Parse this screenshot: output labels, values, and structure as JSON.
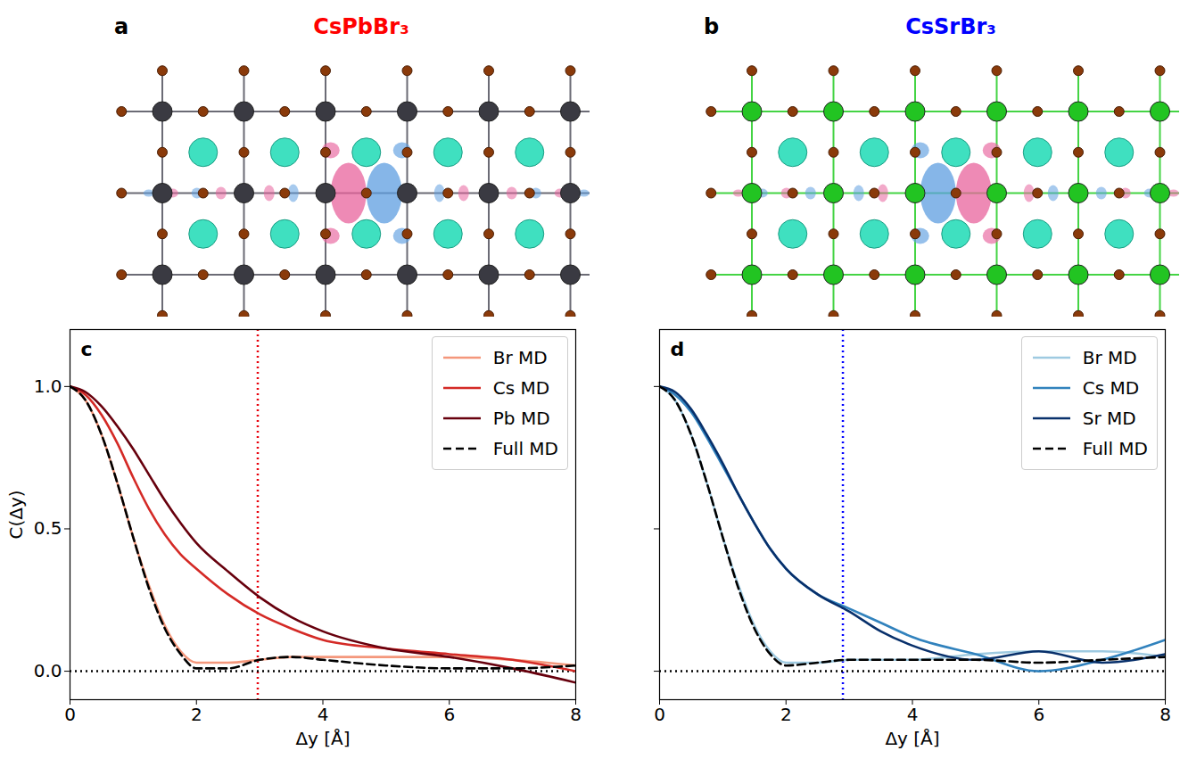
{
  "structures": [
    {
      "panel": "a",
      "title": "CsPbBr₃",
      "title_color": "#ff0000"
    },
    {
      "panel": "b",
      "title": "CsSrBr₃",
      "title_color": "#0000ff"
    }
  ],
  "chart_data": [
    {
      "panel": "c",
      "type": "line",
      "x_label": "Δy [Å]",
      "y_label": "C(Δy)",
      "x": [
        0,
        0.25,
        0.5,
        0.75,
        1,
        1.25,
        1.5,
        1.75,
        2,
        2.5,
        3,
        3.5,
        4,
        5,
        6,
        7,
        8
      ],
      "series": [
        {
          "name": "Br MD",
          "color": "#f4977b",
          "line_style": "solid",
          "values": [
            1.0,
            0.95,
            0.83,
            0.66,
            0.47,
            0.3,
            0.16,
            0.07,
            0.03,
            0.03,
            0.04,
            0.05,
            0.05,
            0.05,
            0.05,
            0.04,
            0.02
          ]
        },
        {
          "name": "Cs MD",
          "color": "#d42a26",
          "line_style": "solid",
          "values": [
            1.0,
            0.97,
            0.9,
            0.8,
            0.68,
            0.57,
            0.48,
            0.41,
            0.36,
            0.27,
            0.2,
            0.15,
            0.11,
            0.08,
            0.06,
            0.04,
            0.0
          ]
        },
        {
          "name": "Pb MD",
          "color": "#67000d",
          "line_style": "solid",
          "values": [
            1.0,
            0.98,
            0.93,
            0.86,
            0.78,
            0.69,
            0.6,
            0.52,
            0.45,
            0.35,
            0.26,
            0.19,
            0.14,
            0.08,
            0.05,
            0.01,
            -0.04
          ]
        },
        {
          "name": "Full MD",
          "color": "#000000",
          "line_style": "dashed",
          "values": [
            1.0,
            0.95,
            0.83,
            0.66,
            0.47,
            0.29,
            0.15,
            0.06,
            0.01,
            0.01,
            0.04,
            0.05,
            0.04,
            0.02,
            0.01,
            0.01,
            0.02
          ]
        }
      ],
      "xlim": [
        0,
        8
      ],
      "xticks": [
        0,
        2,
        4,
        6,
        8
      ],
      "ylim": [
        -0.1,
        1.2
      ],
      "yticks": [
        {
          "value": 0,
          "label": "0.0"
        },
        {
          "value": 0.5,
          "label": "0.5"
        },
        {
          "value": 1,
          "label": "1.0"
        }
      ],
      "legend": "top-right",
      "reference_lines": [
        {
          "x": 2.97,
          "color": "#e8000b",
          "line_style": "dotted"
        },
        {
          "y": 0,
          "color": "#000000",
          "line_style": "dotted"
        }
      ]
    },
    {
      "panel": "d",
      "type": "line",
      "x_label": "Δy [Å]",
      "x": [
        0,
        0.25,
        0.5,
        0.75,
        1,
        1.25,
        1.5,
        1.75,
        2,
        2.5,
        3,
        3.5,
        4,
        5,
        6,
        7,
        8
      ],
      "series": [
        {
          "name": "Br MD",
          "color": "#9ecae1",
          "line_style": "solid",
          "values": [
            1.0,
            0.95,
            0.83,
            0.66,
            0.47,
            0.3,
            0.16,
            0.07,
            0.03,
            0.03,
            0.04,
            0.04,
            0.04,
            0.06,
            0.07,
            0.07,
            0.05
          ]
        },
        {
          "name": "Cs MD",
          "color": "#3182bd",
          "line_style": "solid",
          "values": [
            1.0,
            0.97,
            0.91,
            0.82,
            0.72,
            0.62,
            0.52,
            0.43,
            0.36,
            0.27,
            0.22,
            0.17,
            0.12,
            0.06,
            0.0,
            0.04,
            0.11
          ]
        },
        {
          "name": "Sr MD",
          "color": "#08306b",
          "line_style": "solid",
          "values": [
            1.0,
            0.98,
            0.92,
            0.83,
            0.73,
            0.62,
            0.52,
            0.43,
            0.36,
            0.27,
            0.21,
            0.14,
            0.09,
            0.04,
            0.07,
            0.03,
            0.06
          ]
        },
        {
          "name": "Full MD",
          "color": "#000000",
          "line_style": "dashed",
          "values": [
            1.0,
            0.95,
            0.83,
            0.66,
            0.47,
            0.29,
            0.15,
            0.06,
            0.02,
            0.03,
            0.04,
            0.04,
            0.04,
            0.04,
            0.03,
            0.04,
            0.05
          ]
        }
      ],
      "xlim": [
        0,
        8
      ],
      "xticks": [
        0,
        2,
        4,
        6,
        8
      ],
      "ylim": [
        -0.1,
        1.2
      ],
      "yticks": [
        {
          "value": 0,
          "label": "0.0"
        },
        {
          "value": 0.5,
          "label": "0.5"
        },
        {
          "value": 1,
          "label": "1.0"
        }
      ],
      "tick_labels": "x",
      "legend": "top-right",
      "reference_lines": [
        {
          "x": 2.9,
          "color": "#0000ff",
          "line_style": "dotted"
        },
        {
          "y": 0,
          "color": "#000000",
          "line_style": "dotted"
        }
      ]
    }
  ]
}
